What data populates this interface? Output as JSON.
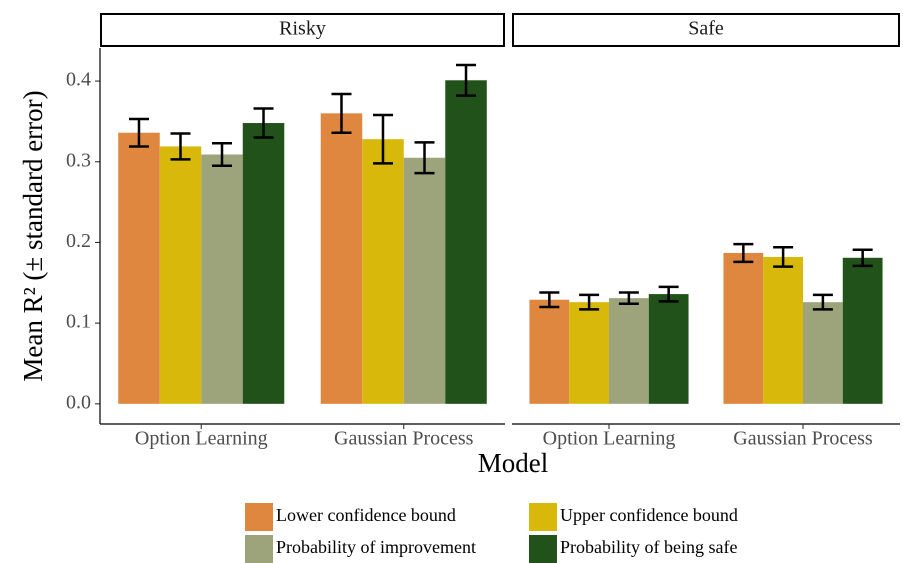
{
  "chart_data": {
    "type": "bar",
    "xlabel": "Model",
    "ylabel": "Mean  R² (± standard error)",
    "panels": [
      "Risky",
      "Safe"
    ],
    "categories": [
      "Option Learning",
      "Gaussian Process"
    ],
    "series": [
      {
        "name": "Lower confidence bound",
        "color": "#df873f",
        "values": [
          [
            0.336,
            0.36
          ],
          [
            0.129,
            0.187
          ]
        ],
        "errors": [
          [
            0.017,
            0.024
          ],
          [
            0.009,
            0.011
          ]
        ]
      },
      {
        "name": "Upper confidence bound",
        "color": "#d8b80a",
        "values": [
          [
            0.319,
            0.328
          ],
          [
            0.126,
            0.182
          ]
        ],
        "errors": [
          [
            0.016,
            0.03
          ],
          [
            0.009,
            0.012
          ]
        ]
      },
      {
        "name": "Probability of improvement",
        "color": "#9da37a",
        "values": [
          [
            0.309,
            0.305
          ],
          [
            0.131,
            0.126
          ]
        ],
        "errors": [
          [
            0.014,
            0.019
          ],
          [
            0.007,
            0.009
          ]
        ]
      },
      {
        "name": "Probability of being safe",
        "color": "#215219",
        "values": [
          [
            0.348,
            0.401
          ],
          [
            0.136,
            0.181
          ]
        ],
        "errors": [
          [
            0.018,
            0.019
          ],
          [
            0.009,
            0.01
          ]
        ]
      }
    ],
    "ylim": [
      -0.025,
      0.441
    ],
    "yticks": [
      {
        "value": 0,
        "label": "0.0"
      },
      0.1,
      0.2,
      0.3,
      0.4
    ]
  }
}
